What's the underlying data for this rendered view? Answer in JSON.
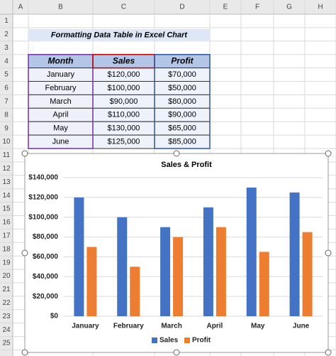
{
  "sheet": {
    "columns": [
      "A",
      "B",
      "C",
      "D",
      "E",
      "F",
      "G",
      "H"
    ],
    "rows": [
      1,
      2,
      3,
      4,
      5,
      6,
      7,
      8,
      9,
      10,
      11,
      12,
      13,
      14,
      15,
      16,
      17,
      18,
      19,
      20,
      21,
      22,
      23,
      24,
      25
    ],
    "title": "Formatting Data Table in Excel Chart",
    "table": {
      "header": [
        "Month",
        "Sales",
        "Profit"
      ],
      "rows": [
        [
          "January",
          "$120,000",
          "$70,000"
        ],
        [
          "February",
          "$100,000",
          "$50,000"
        ],
        [
          "March",
          "$90,000",
          "$80,000"
        ],
        [
          "April",
          "$110,000",
          "$90,000"
        ],
        [
          "May",
          "$130,000",
          "$65,000"
        ],
        [
          "June",
          "$125,000",
          "$85,000"
        ]
      ]
    }
  },
  "chart_data": {
    "type": "bar",
    "title": "Sales & Profit",
    "categories": [
      "January",
      "February",
      "March",
      "April",
      "May",
      "June"
    ],
    "series": [
      {
        "name": "Sales",
        "color": "#4472c4",
        "values": [
          120000,
          100000,
          90000,
          110000,
          130000,
          125000
        ]
      },
      {
        "name": "Profit",
        "color": "#ed7d31",
        "values": [
          70000,
          50000,
          80000,
          90000,
          65000,
          85000
        ]
      }
    ],
    "ylim": [
      0,
      140000
    ],
    "yticks": [
      {
        "value": 0,
        "label": "$0"
      },
      {
        "value": 20000,
        "label": "$20,000"
      },
      {
        "value": 40000,
        "label": "$40,000"
      },
      {
        "value": 60000,
        "label": "$60,000"
      },
      {
        "value": 80000,
        "label": "$80,000"
      },
      {
        "value": 100000,
        "label": "$100,000"
      },
      {
        "value": 120000,
        "label": "$120,000"
      },
      {
        "value": 140000,
        "label": "$140,000"
      }
    ],
    "grid": true,
    "legend": "bottom"
  }
}
